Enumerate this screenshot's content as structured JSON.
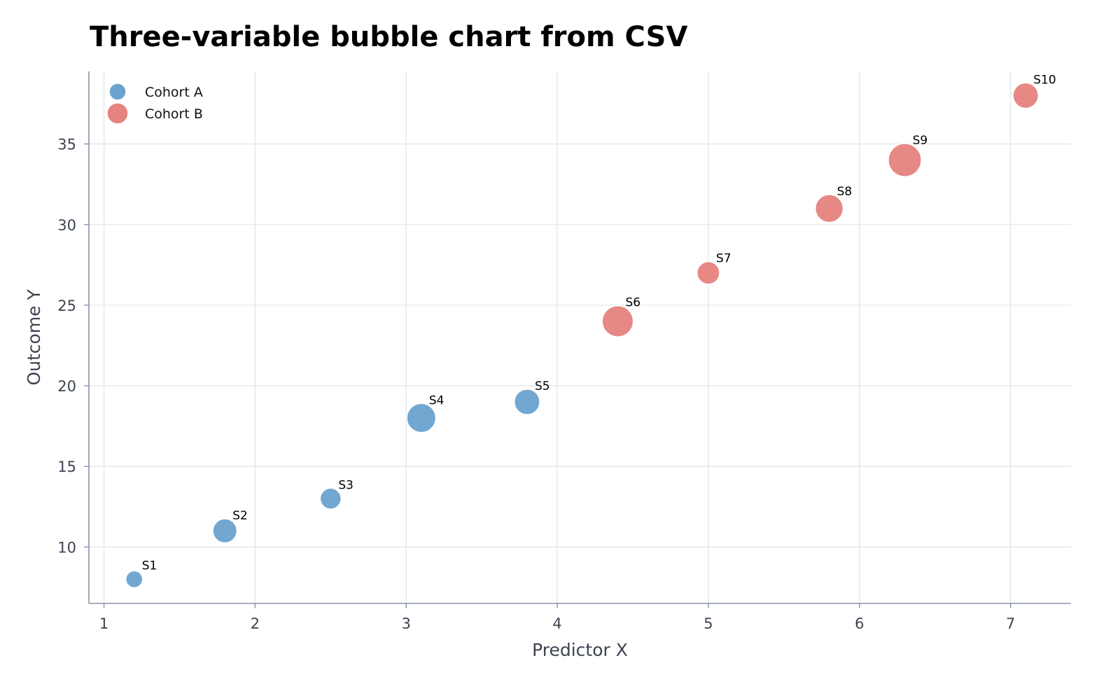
{
  "chart_data": {
    "type": "scatter",
    "title": "Three-variable bubble chart from CSV",
    "xlabel": "Predictor X",
    "ylabel": "Outcome Y",
    "xlim": [
      0.9,
      7.4
    ],
    "ylim": [
      6.5,
      39.5
    ],
    "x_ticks": [
      1,
      2,
      3,
      4,
      5,
      6,
      7
    ],
    "y_ticks": [
      10,
      15,
      20,
      25,
      30,
      35
    ],
    "grid": true,
    "legend_position": "top-left",
    "series": [
      {
        "name": "Cohort A",
        "color": "#6aa3cf",
        "points": [
          {
            "label": "S1",
            "x": 1.2,
            "y": 8,
            "size": 1
          },
          {
            "label": "S2",
            "x": 1.8,
            "y": 11,
            "size": 3
          },
          {
            "label": "S3",
            "x": 2.5,
            "y": 13,
            "size": 2
          },
          {
            "label": "S4",
            "x": 3.1,
            "y": 18,
            "size": 5
          },
          {
            "label": "S5",
            "x": 3.8,
            "y": 19,
            "size": 3.5
          }
        ]
      },
      {
        "name": "Cohort B",
        "color": "#e5837f",
        "points": [
          {
            "label": "S6",
            "x": 4.4,
            "y": 24,
            "size": 6
          },
          {
            "label": "S7",
            "x": 5.0,
            "y": 27,
            "size": 2.5
          },
          {
            "label": "S8",
            "x": 5.8,
            "y": 31,
            "size": 4.5
          },
          {
            "label": "S9",
            "x": 6.3,
            "y": 34,
            "size": 7
          },
          {
            "label": "S10",
            "x": 7.1,
            "y": 38,
            "size": 3.5
          }
        ]
      }
    ]
  }
}
